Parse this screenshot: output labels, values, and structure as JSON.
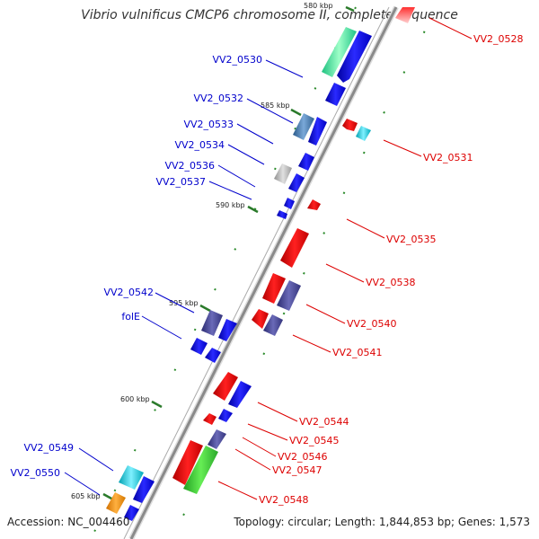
{
  "title": "Vibrio vulnificus CMCP6 chromosome II, complete sequence",
  "accession": "Accession: NC_004460",
  "topology": "Topology: circular; Length: 1,844,853 bp; Genes: 1,573",
  "scale_labels": [
    "580 kbp",
    "585 kbp",
    "590 kbp",
    "595 kbp",
    "600 kbp",
    "605 kbp"
  ],
  "colors": {
    "left_label": "#0000cc",
    "right_label": "#dd0000",
    "axis": "#888888",
    "tick": "#2a8a2a"
  },
  "labels_left": [
    "VV2_0530",
    "VV2_0532",
    "VV2_0533",
    "VV2_0534",
    "VV2_0536",
    "VV2_0537",
    "VV2_0542",
    "folE",
    "VV2_0549",
    "VV2_0550"
  ],
  "labels_right": [
    "VV2_0528",
    "VV2_0531",
    "VV2_0535",
    "VV2_0538",
    "VV2_0540",
    "VV2_0541",
    "VV2_0544",
    "VV2_0545",
    "VV2_0546",
    "VV2_0547",
    "VV2_0548"
  ]
}
